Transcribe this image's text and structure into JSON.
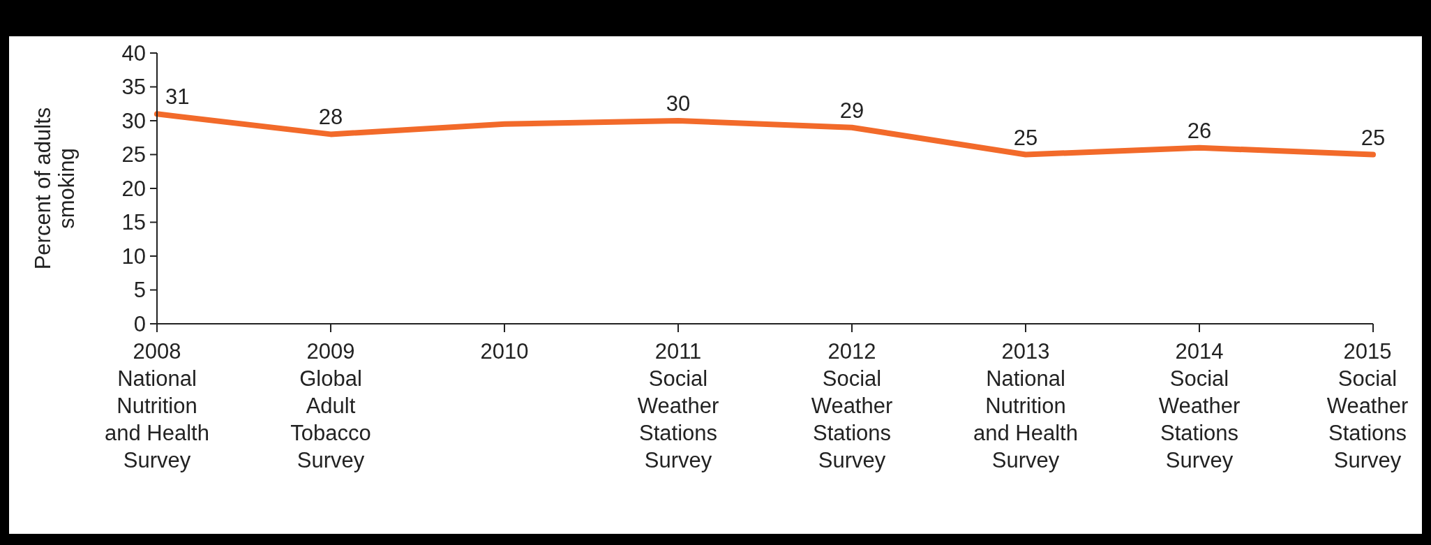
{
  "chart_data": {
    "type": "line",
    "ylabel": "Percent of adults\nsmoking",
    "categories": [
      "2008\nNational\nNutrition\nand Health\nSurvey",
      "2009\nGlobal\nAdult\nTobacco\nSurvey",
      "2010",
      "2011\nSocial\nWeather\nStations\nSurvey",
      "2012\nSocial\nWeather\nStations\nSurvey",
      "2013\nNational\nNutrition\nand Health\nSurvey",
      "2014\nSocial\nWeather\nStations\nSurvey",
      "2015\nSocial\nWeather\nStations\nSurvey"
    ],
    "series": [
      {
        "color": "#f26a2a",
        "values": [
          31,
          28,
          29.5,
          30,
          29,
          25,
          26,
          25
        ],
        "value_labels": [
          "31",
          "28",
          null,
          "30",
          "29",
          "25",
          "26",
          "25"
        ]
      }
    ],
    "ylim": [
      0,
      40
    ],
    "yticks": [
      0,
      5,
      10,
      15,
      20,
      25,
      30,
      35,
      40
    ],
    "grid": false,
    "marker": "none",
    "line_style": "solid"
  }
}
